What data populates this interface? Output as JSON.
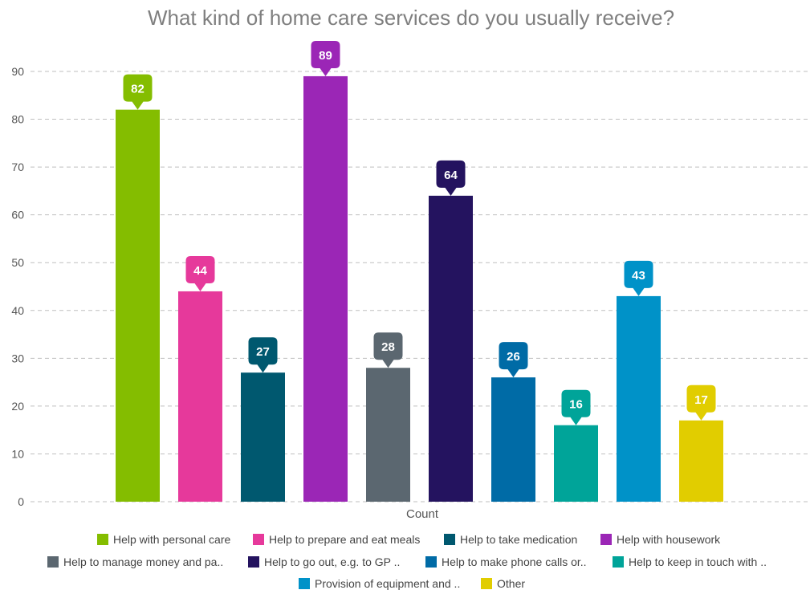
{
  "chart_data": {
    "type": "bar",
    "title": "What kind of home care services do you usually receive?",
    "xlabel": "Count",
    "ylabel": "",
    "ylim": [
      0,
      90
    ],
    "yticks": [
      0,
      10,
      20,
      30,
      40,
      50,
      60,
      70,
      80,
      90
    ],
    "grid": true,
    "legend_position": "bottom",
    "categories": [
      "Help with personal care",
      "Help to prepare and eat meals",
      "Help to take medication",
      "Help with housework",
      "Help to manage money and pa..",
      "Help to go out, e.g. to GP ..",
      "Help to make phone calls or..",
      "Help to keep in touch with ..",
      "Provision of equipment and ..",
      "Other"
    ],
    "values": [
      82,
      44,
      27,
      89,
      28,
      64,
      26,
      16,
      43,
      17
    ],
    "colors": [
      "#84bd00",
      "#e6399b",
      "#00586f",
      "#9b26b6",
      "#5b6770",
      "#24135f",
      "#006ba6",
      "#00a499",
      "#0092c8",
      "#e1cd00"
    ]
  }
}
